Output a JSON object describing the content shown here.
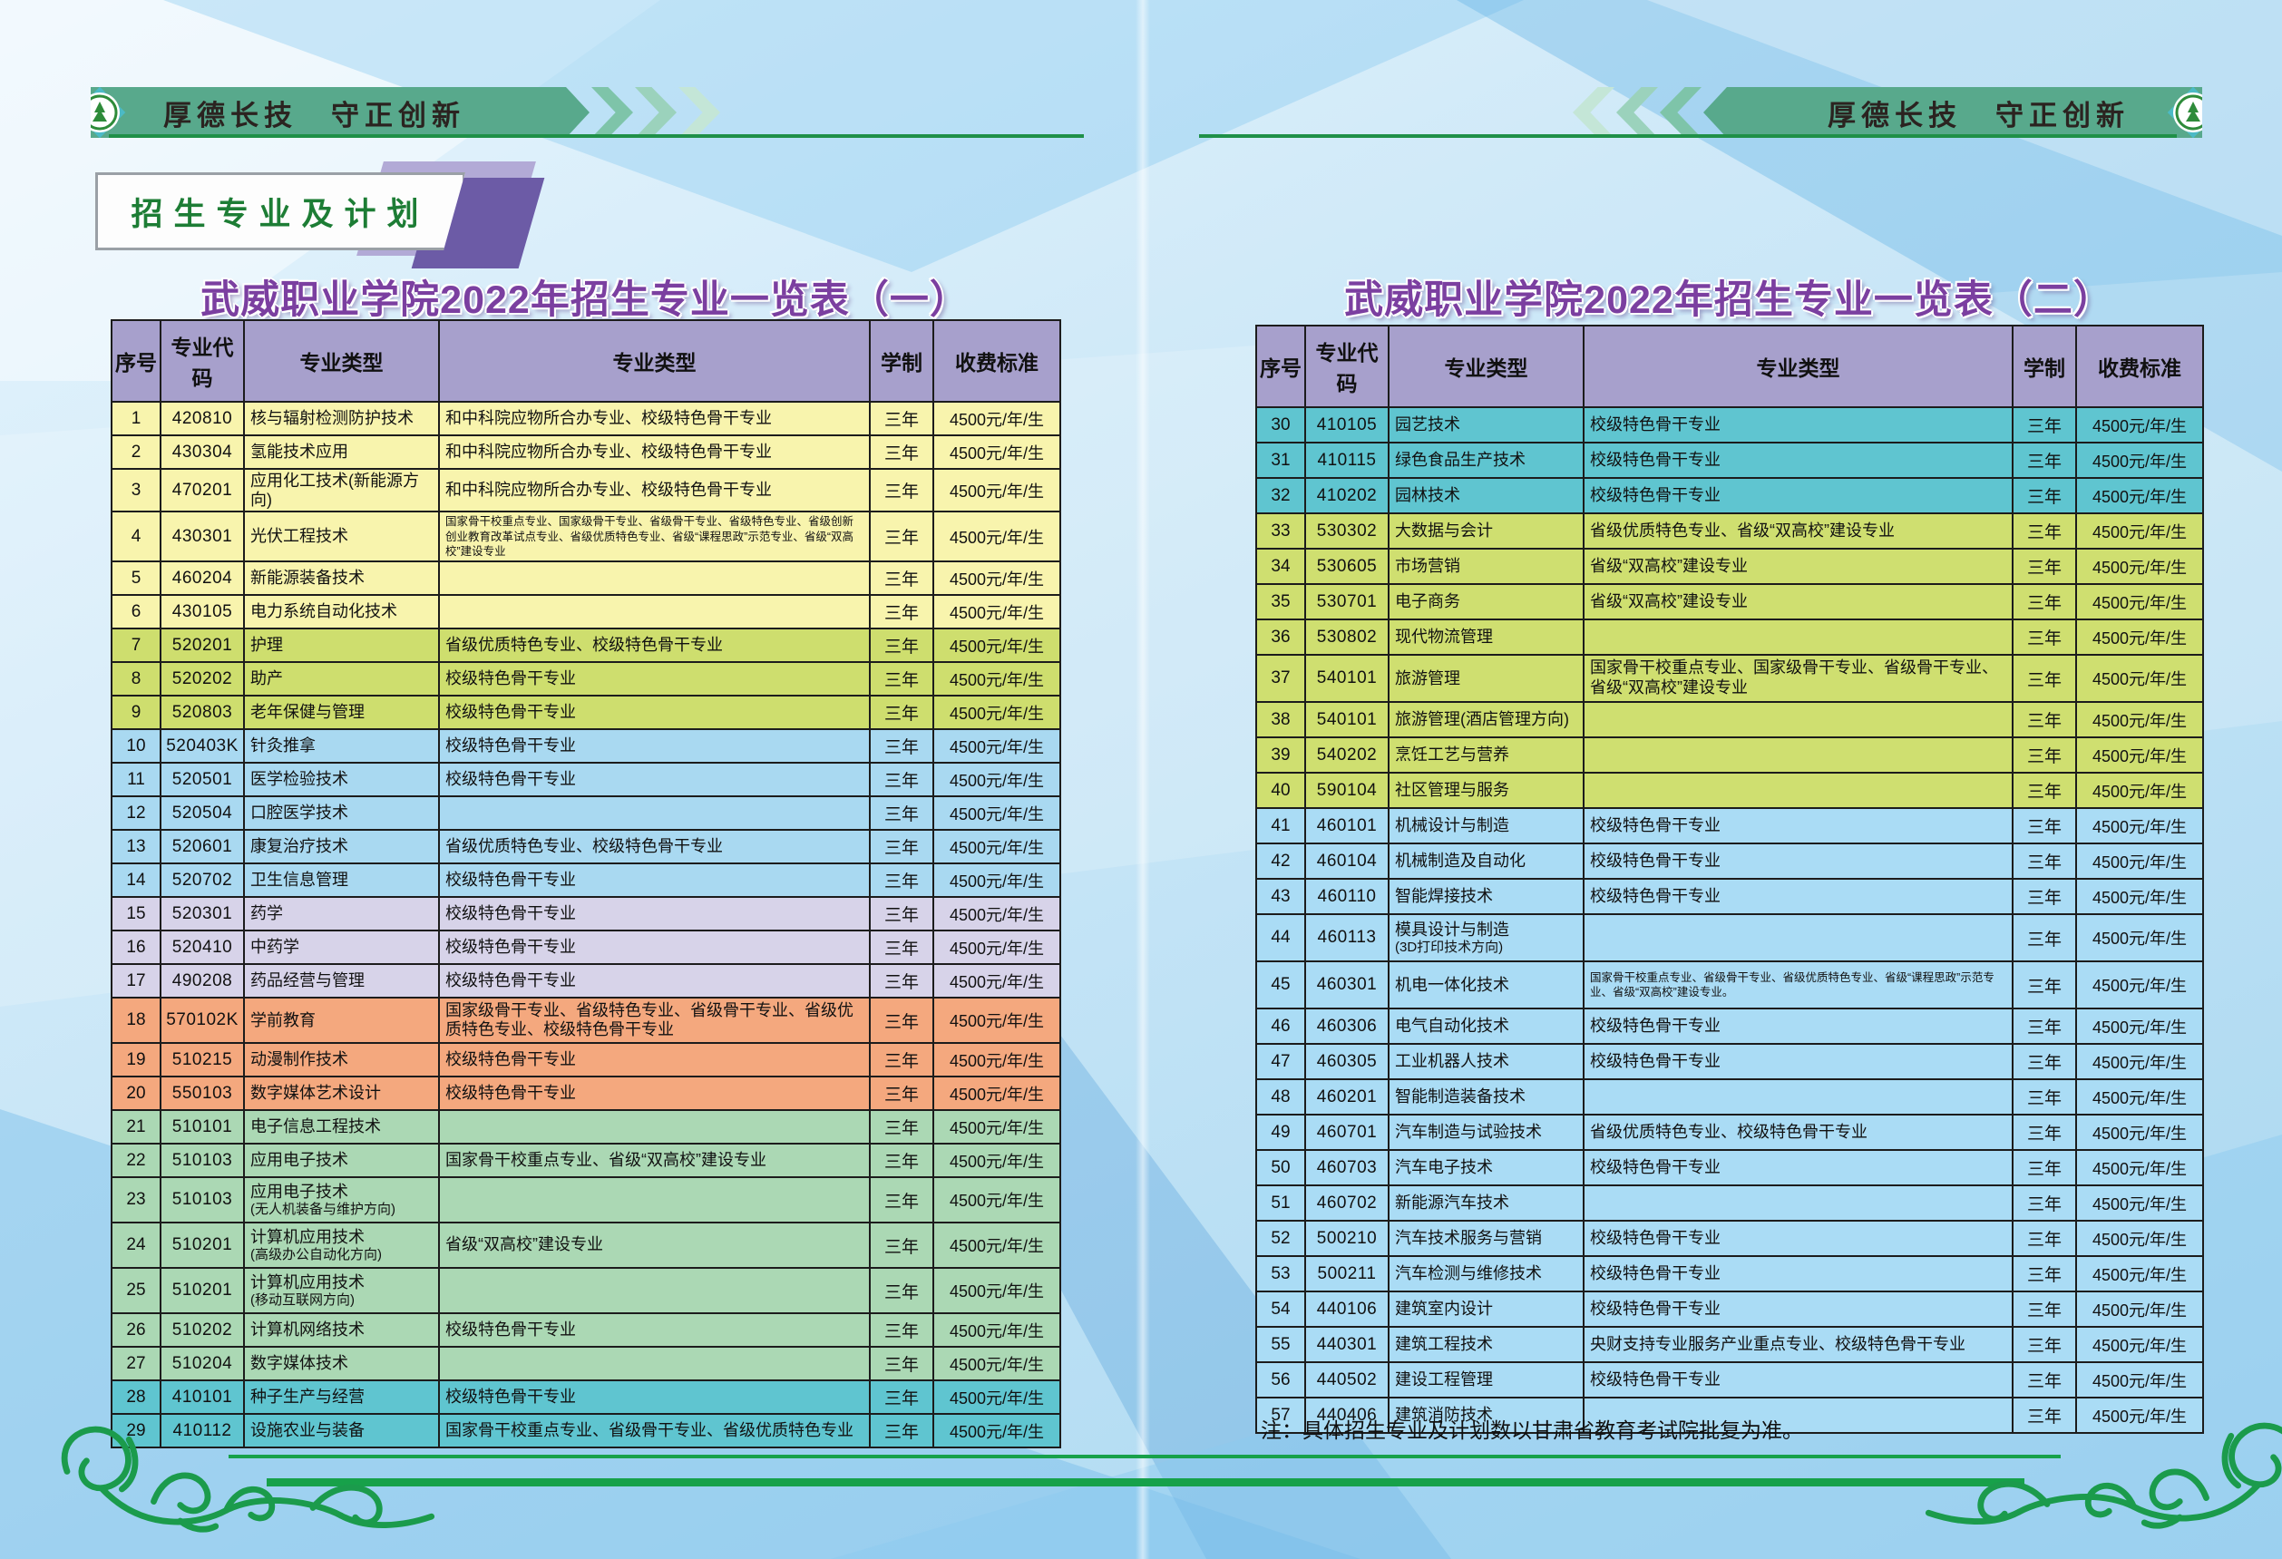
{
  "banner": {
    "motto": "厚德长技　守正创新"
  },
  "badge": {
    "label": "招生专业及计划"
  },
  "note": "注：具体招生专业及计划数以甘肃省教育考试院批复为准。",
  "colors": {
    "banner_green": "#58a98c",
    "underline_green": "#1f9048",
    "bottom_line_green": "#17a14a",
    "title_purple": "#7b3fa0",
    "badge_text_green": "#1d7d35",
    "header_bg": "#a7a0cc",
    "groups": {
      "yellow": "#f8f4ad",
      "lime": "#cede6e",
      "blue": "#a9d9f1",
      "lavender": "#d7d3e9",
      "orange": "#f4a87e",
      "green": "#abd8b4",
      "teal": "#5fc5d0",
      "lime2": "#cfdf70",
      "blue2": "#aadcf5"
    }
  },
  "tables": [
    {
      "title": "武威职业学院2022年招生专业一览表（一）",
      "headers": [
        "序号",
        "专业代码",
        "专业类型",
        "专业类型",
        "学制",
        "收费标准"
      ],
      "rows": [
        {
          "num": "1",
          "code": "420810",
          "name": "核与辐射检测防护技术",
          "type": "和中科院应物所合办专业、校级特色骨干专业",
          "duration": "三年",
          "fee": "4500元/年/生",
          "group": "yellow"
        },
        {
          "num": "2",
          "code": "430304",
          "name": "氢能技术应用",
          "type": "和中科院应物所合办专业、校级特色骨干专业",
          "duration": "三年",
          "fee": "4500元/年/生",
          "group": "yellow"
        },
        {
          "num": "3",
          "code": "470201",
          "name": "应用化工技术(新能源方向)",
          "type": "和中科院应物所合办专业、校级特色骨干专业",
          "duration": "三年",
          "fee": "4500元/年/生",
          "group": "yellow"
        },
        {
          "num": "4",
          "code": "430301",
          "name": "光伏工程技术",
          "type": "国家骨干校重点专业、国家级骨干专业、省级骨干专业、省级特色专业、省级创新创业教育改革试点专业、省级优质特色专业、省级“课程思政”示范专业、省级“双高校”建设专业",
          "type_small": true,
          "tall": true,
          "duration": "三年",
          "fee": "4500元/年/生",
          "group": "yellow"
        },
        {
          "num": "5",
          "code": "460204",
          "name": "新能源装备技术",
          "type": "",
          "duration": "三年",
          "fee": "4500元/年/生",
          "group": "yellow"
        },
        {
          "num": "6",
          "code": "430105",
          "name": "电力系统自动化技术",
          "type": "",
          "duration": "三年",
          "fee": "4500元/年/生",
          "group": "yellow"
        },
        {
          "num": "7",
          "code": "520201",
          "name": "护理",
          "type": "省级优质特色专业、校级特色骨干专业",
          "duration": "三年",
          "fee": "4500元/年/生",
          "group": "lime"
        },
        {
          "num": "8",
          "code": "520202",
          "name": "助产",
          "type": "校级特色骨干专业",
          "duration": "三年",
          "fee": "4500元/年/生",
          "group": "lime"
        },
        {
          "num": "9",
          "code": "520803",
          "name": "老年保健与管理",
          "type": "校级特色骨干专业",
          "duration": "三年",
          "fee": "4500元/年/生",
          "group": "lime"
        },
        {
          "num": "10",
          "code": "520403K",
          "name": "针灸推拿",
          "type": "校级特色骨干专业",
          "duration": "三年",
          "fee": "4500元/年/生",
          "group": "blue"
        },
        {
          "num": "11",
          "code": "520501",
          "name": "医学检验技术",
          "type": "校级特色骨干专业",
          "duration": "三年",
          "fee": "4500元/年/生",
          "group": "blue"
        },
        {
          "num": "12",
          "code": "520504",
          "name": "口腔医学技术",
          "type": "",
          "duration": "三年",
          "fee": "4500元/年/生",
          "group": "blue"
        },
        {
          "num": "13",
          "code": "520601",
          "name": "康复治疗技术",
          "type": "省级优质特色专业、校级特色骨干专业",
          "duration": "三年",
          "fee": "4500元/年/生",
          "group": "blue"
        },
        {
          "num": "14",
          "code": "520702",
          "name": "卫生信息管理",
          "type": "校级特色骨干专业",
          "duration": "三年",
          "fee": "4500元/年/生",
          "group": "blue"
        },
        {
          "num": "15",
          "code": "520301",
          "name": "药学",
          "type": "校级特色骨干专业",
          "duration": "三年",
          "fee": "4500元/年/生",
          "group": "lavender"
        },
        {
          "num": "16",
          "code": "520410",
          "name": "中药学",
          "type": "校级特色骨干专业",
          "duration": "三年",
          "fee": "4500元/年/生",
          "group": "lavender"
        },
        {
          "num": "17",
          "code": "490208",
          "name": "药品经营与管理",
          "type": "校级特色骨干专业",
          "duration": "三年",
          "fee": "4500元/年/生",
          "group": "lavender"
        },
        {
          "num": "18",
          "code": "570102K",
          "name": "学前教育",
          "type": "国家级骨干专业、省级特色专业、省级骨干专业、省级优质特色专业、校级特色骨干专业",
          "tall": true,
          "duration": "三年",
          "fee": "4500元/年/生",
          "group": "orange"
        },
        {
          "num": "19",
          "code": "510215",
          "name": "动漫制作技术",
          "type": "校级特色骨干专业",
          "duration": "三年",
          "fee": "4500元/年/生",
          "group": "orange"
        },
        {
          "num": "20",
          "code": "550103",
          "name": "数字媒体艺术设计",
          "type": "校级特色骨干专业",
          "duration": "三年",
          "fee": "4500元/年/生",
          "group": "orange"
        },
        {
          "num": "21",
          "code": "510101",
          "name": "电子信息工程技术",
          "type": "",
          "duration": "三年",
          "fee": "4500元/年/生",
          "group": "green"
        },
        {
          "num": "22",
          "code": "510103",
          "name": "应用电子技术",
          "type": "国家骨干校重点专业、省级“双高校”建设专业",
          "duration": "三年",
          "fee": "4500元/年/生",
          "group": "green"
        },
        {
          "num": "23",
          "code": "510103",
          "name": "应用电子技术",
          "name2": "(无人机装备与维护方向)",
          "type": "",
          "tall": true,
          "duration": "三年",
          "fee": "4500元/年/生",
          "group": "green"
        },
        {
          "num": "24",
          "code": "510201",
          "name": "计算机应用技术",
          "name2": "(高级办公自动化方向)",
          "type": "省级“双高校”建设专业",
          "tall": true,
          "duration": "三年",
          "fee": "4500元/年/生",
          "group": "green"
        },
        {
          "num": "25",
          "code": "510201",
          "name": "计算机应用技术",
          "name2": "(移动互联网方向)",
          "type": "",
          "tall": true,
          "duration": "三年",
          "fee": "4500元/年/生",
          "group": "green"
        },
        {
          "num": "26",
          "code": "510202",
          "name": "计算机网络技术",
          "type": "校级特色骨干专业",
          "duration": "三年",
          "fee": "4500元/年/生",
          "group": "green"
        },
        {
          "num": "27",
          "code": "510204",
          "name": "数字媒体技术",
          "type": "",
          "duration": "三年",
          "fee": "4500元/年/生",
          "group": "green"
        },
        {
          "num": "28",
          "code": "410101",
          "name": "种子生产与经营",
          "type": "校级特色骨干专业",
          "duration": "三年",
          "fee": "4500元/年/生",
          "group": "teal"
        },
        {
          "num": "29",
          "code": "410112",
          "name": "设施农业与装备",
          "type": "国家骨干校重点专业、省级骨干专业、省级优质特色专业",
          "duration": "三年",
          "fee": "4500元/年/生",
          "group": "teal"
        }
      ]
    },
    {
      "title": "武威职业学院2022年招生专业一览表（二）",
      "headers": [
        "序号",
        "专业代码",
        "专业类型",
        "专业类型",
        "学制",
        "收费标准"
      ],
      "rows": [
        {
          "num": "30",
          "code": "410105",
          "name": "园艺技术",
          "type": "校级特色骨干专业",
          "duration": "三年",
          "fee": "4500元/年/生",
          "group": "teal"
        },
        {
          "num": "31",
          "code": "410115",
          "name": "绿色食品生产技术",
          "type": "校级特色骨干专业",
          "duration": "三年",
          "fee": "4500元/年/生",
          "group": "teal"
        },
        {
          "num": "32",
          "code": "410202",
          "name": "园林技术",
          "type": "校级特色骨干专业",
          "duration": "三年",
          "fee": "4500元/年/生",
          "group": "teal"
        },
        {
          "num": "33",
          "code": "530302",
          "name": "大数据与会计",
          "type": "省级优质特色专业、省级“双高校”建设专业",
          "duration": "三年",
          "fee": "4500元/年/生",
          "group": "lime2"
        },
        {
          "num": "34",
          "code": "530605",
          "name": "市场营销",
          "type": "省级“双高校”建设专业",
          "duration": "三年",
          "fee": "4500元/年/生",
          "group": "lime2"
        },
        {
          "num": "35",
          "code": "530701",
          "name": "电子商务",
          "type": "省级“双高校”建设专业",
          "duration": "三年",
          "fee": "4500元/年/生",
          "group": "lime2"
        },
        {
          "num": "36",
          "code": "530802",
          "name": "现代物流管理",
          "type": "",
          "duration": "三年",
          "fee": "4500元/年/生",
          "group": "lime2"
        },
        {
          "num": "37",
          "code": "540101",
          "name": "旅游管理",
          "type": "国家骨干校重点专业、国家级骨干专业、省级骨干专业、省级“双高校”建设专业",
          "tall": true,
          "duration": "三年",
          "fee": "4500元/年/生",
          "group": "lime2"
        },
        {
          "num": "38",
          "code": "540101",
          "name": "旅游管理(酒店管理方向)",
          "type": "",
          "duration": "三年",
          "fee": "4500元/年/生",
          "group": "lime2"
        },
        {
          "num": "39",
          "code": "540202",
          "name": "烹饪工艺与营养",
          "type": "",
          "duration": "三年",
          "fee": "4500元/年/生",
          "group": "lime2"
        },
        {
          "num": "40",
          "code": "590104",
          "name": "社区管理与服务",
          "type": "",
          "duration": "三年",
          "fee": "4500元/年/生",
          "group": "lime2"
        },
        {
          "num": "41",
          "code": "460101",
          "name": "机械设计与制造",
          "type": "校级特色骨干专业",
          "duration": "三年",
          "fee": "4500元/年/生",
          "group": "blue2"
        },
        {
          "num": "42",
          "code": "460104",
          "name": "机械制造及自动化",
          "type": "校级特色骨干专业",
          "duration": "三年",
          "fee": "4500元/年/生",
          "group": "blue2"
        },
        {
          "num": "43",
          "code": "460110",
          "name": "智能焊接技术",
          "type": "校级特色骨干专业",
          "duration": "三年",
          "fee": "4500元/年/生",
          "group": "blue2"
        },
        {
          "num": "44",
          "code": "460113",
          "name": "模具设计与制造",
          "name2": "(3D打印技术方向)",
          "type": "",
          "tall": true,
          "duration": "三年",
          "fee": "4500元/年/生",
          "group": "blue2"
        },
        {
          "num": "45",
          "code": "460301",
          "name": "机电一体化技术",
          "type": "国家骨干校重点专业、省级骨干专业、省级优质特色专业、省级“课程思政”示范专业、省级“双高校”建设专业。",
          "type_small": true,
          "tall": true,
          "duration": "三年",
          "fee": "4500元/年/生",
          "group": "blue2"
        },
        {
          "num": "46",
          "code": "460306",
          "name": "电气自动化技术",
          "type": "校级特色骨干专业",
          "duration": "三年",
          "fee": "4500元/年/生",
          "group": "blue2"
        },
        {
          "num": "47",
          "code": "460305",
          "name": "工业机器人技术",
          "type": "校级特色骨干专业",
          "duration": "三年",
          "fee": "4500元/年/生",
          "group": "blue2"
        },
        {
          "num": "48",
          "code": "460201",
          "name": "智能制造装备技术",
          "type": "",
          "duration": "三年",
          "fee": "4500元/年/生",
          "group": "blue2"
        },
        {
          "num": "49",
          "code": "460701",
          "name": "汽车制造与试验技术",
          "type": "省级优质特色专业、校级特色骨干专业",
          "duration": "三年",
          "fee": "4500元/年/生",
          "group": "blue2"
        },
        {
          "num": "50",
          "code": "460703",
          "name": "汽车电子技术",
          "type": "校级特色骨干专业",
          "duration": "三年",
          "fee": "4500元/年/生",
          "group": "blue2"
        },
        {
          "num": "51",
          "code": "460702",
          "name": "新能源汽车技术",
          "type": "",
          "duration": "三年",
          "fee": "4500元/年/生",
          "group": "blue2"
        },
        {
          "num": "52",
          "code": "500210",
          "name": "汽车技术服务与营销",
          "type": "校级特色骨干专业",
          "duration": "三年",
          "fee": "4500元/年/生",
          "group": "blue2"
        },
        {
          "num": "53",
          "code": "500211",
          "name": "汽车检测与维修技术",
          "type": "校级特色骨干专业",
          "duration": "三年",
          "fee": "4500元/年/生",
          "group": "blue2"
        },
        {
          "num": "54",
          "code": "440106",
          "name": "建筑室内设计",
          "type": "校级特色骨干专业",
          "duration": "三年",
          "fee": "4500元/年/生",
          "group": "blue2"
        },
        {
          "num": "55",
          "code": "440301",
          "name": "建筑工程技术",
          "type": "央财支持专业服务产业重点专业、校级特色骨干专业",
          "duration": "三年",
          "fee": "4500元/年/生",
          "group": "blue2"
        },
        {
          "num": "56",
          "code": "440502",
          "name": "建设工程管理",
          "type": "校级特色骨干专业",
          "duration": "三年",
          "fee": "4500元/年/生",
          "group": "blue2"
        },
        {
          "num": "57",
          "code": "440406",
          "name": "建筑消防技术",
          "type": "",
          "duration": "三年",
          "fee": "4500元/年/生",
          "group": "blue2"
        }
      ]
    }
  ]
}
